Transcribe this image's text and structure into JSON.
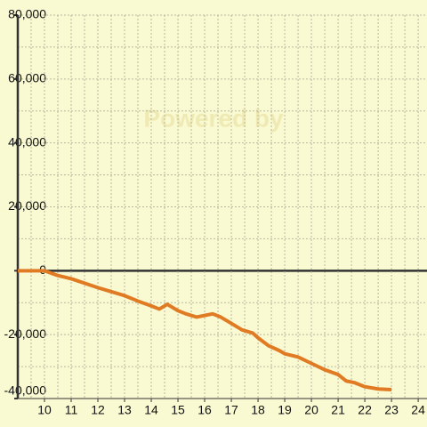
{
  "chart_data": {
    "type": "line",
    "watermark": "Powered by",
    "x": [
      9,
      10,
      10.5,
      11,
      12,
      13,
      13.5,
      14,
      14.3,
      14.6,
      15,
      15.3,
      15.7,
      16,
      16.3,
      16.6,
      17,
      17.4,
      17.8,
      18,
      18.4,
      18.8,
      19,
      19.5,
      20,
      20.5,
      21,
      21.3,
      21.6,
      22,
      22.5,
      23
    ],
    "series": [
      {
        "color": "#e07b24",
        "values": [
          0,
          0,
          -1500,
          -2500,
          -5300,
          -7800,
          -9500,
          -11000,
          -12000,
          -10500,
          -12500,
          -13500,
          -14500,
          -14000,
          -13500,
          -14500,
          -16500,
          -18500,
          -19500,
          -21000,
          -23500,
          -25000,
          -26000,
          -27000,
          -29000,
          -31000,
          -32500,
          -34500,
          -35000,
          -36300,
          -37000,
          -37200
        ]
      }
    ],
    "xlim": [
      9,
      24.33
    ],
    "ylim": [
      -40000,
      80000
    ],
    "xticks": [
      10,
      11,
      12,
      13,
      14,
      15,
      16,
      17,
      18,
      19,
      20,
      21,
      22,
      23,
      24
    ],
    "yticks": [
      {
        "value": -40000,
        "label": "-40,000"
      },
      {
        "value": -20000,
        "label": "-20,000"
      },
      0,
      {
        "value": 20000,
        "label": "20,000"
      },
      {
        "value": 40000,
        "label": "40,000"
      },
      {
        "value": 60000,
        "label": "60,000"
      },
      {
        "value": 80000,
        "label": "80,000"
      }
    ],
    "yminorticks": [
      -30000,
      -10000,
      10000,
      30000,
      50000,
      70000
    ],
    "xminorticks": [
      9.5,
      10.5,
      11.5,
      12.5,
      13.5,
      14.5,
      15.5,
      16.5,
      17.5,
      18.5,
      19.5,
      20.5,
      21.5,
      22.5,
      23.5
    ],
    "grid": true
  }
}
